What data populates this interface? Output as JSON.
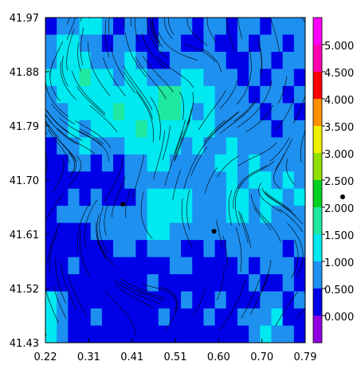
{
  "chart_data": {
    "type": "heatmap",
    "title": "",
    "xlabel": "",
    "ylabel": "",
    "xlim": [
      0.22,
      0.79
    ],
    "ylim": [
      41.43,
      41.97
    ],
    "x_ticks": [
      "0.22",
      "0.31",
      "0.41",
      "0.51",
      "0.60",
      "0.70",
      "0.79"
    ],
    "y_ticks": [
      "41.97",
      "41.88",
      "41.79",
      "41.70",
      "41.61",
      "41.52",
      "41.43"
    ],
    "colorbar": {
      "labels": [
        "0.000",
        "0.500",
        "1.000",
        "1.500",
        "2.000",
        "2.500",
        "3.000",
        "3.500",
        "4.000",
        "4.500",
        "5.000"
      ],
      "colors": [
        "#9000e0",
        "#0000e8",
        "#1e90f0",
        "#00e8f0",
        "#20e8a0",
        "#00d020",
        "#90e000",
        "#f0f000",
        "#ff9000",
        "#ff0000",
        "#ff00b0",
        "#ff00ff"
      ]
    },
    "overlay": "streamlines",
    "stations": [
      {
        "x": 0.39,
        "y": 41.66
      },
      {
        "x": 0.59,
        "y": 41.615
      }
    ],
    "level_grid": [
      [
        1,
        2,
        2,
        3,
        3,
        2,
        1,
        2,
        2,
        1,
        2,
        2,
        2,
        1,
        2,
        2,
        1,
        2,
        2,
        1,
        2,
        2,
        2
      ],
      [
        2,
        3,
        3,
        2,
        2,
        1,
        2,
        2,
        1,
        1,
        2,
        2,
        1,
        1,
        2,
        1,
        1,
        2,
        1,
        2,
        2,
        1,
        2
      ],
      [
        2,
        3,
        3,
        3,
        2,
        2,
        2,
        3,
        2,
        1,
        1,
        2,
        2,
        2,
        2,
        2,
        1,
        1,
        2,
        2,
        1,
        2,
        2
      ],
      [
        3,
        3,
        3,
        4,
        3,
        3,
        2,
        3,
        3,
        2,
        2,
        2,
        3,
        3,
        2,
        2,
        2,
        1,
        2,
        1,
        2,
        2,
        1
      ],
      [
        2,
        3,
        3,
        3,
        3,
        3,
        3,
        3,
        3,
        3,
        4,
        4,
        3,
        3,
        3,
        2,
        2,
        2,
        1,
        2,
        2,
        1,
        2
      ],
      [
        2,
        2,
        3,
        3,
        3,
        3,
        4,
        3,
        3,
        3,
        4,
        4,
        3,
        2,
        3,
        2,
        2,
        2,
        2,
        1,
        2,
        2,
        1
      ],
      [
        2,
        2,
        3,
        2,
        3,
        3,
        3,
        3,
        4,
        3,
        3,
        3,
        3,
        3,
        3,
        2,
        2,
        2,
        2,
        2,
        1,
        2,
        2
      ],
      [
        1,
        2,
        2,
        3,
        2,
        2,
        2,
        3,
        3,
        3,
        3,
        3,
        2,
        3,
        2,
        2,
        3,
        2,
        2,
        2,
        2,
        2,
        2
      ],
      [
        1,
        1,
        2,
        2,
        1,
        2,
        1,
        2,
        2,
        3,
        3,
        2,
        2,
        2,
        2,
        3,
        3,
        2,
        3,
        2,
        2,
        2,
        2
      ],
      [
        1,
        1,
        1,
        1,
        1,
        1,
        1,
        2,
        2,
        2,
        2,
        2,
        2,
        2,
        2,
        2,
        3,
        2,
        3,
        3,
        2,
        3,
        2
      ],
      [
        1,
        1,
        2,
        1,
        2,
        1,
        1,
        1,
        2,
        3,
        3,
        3,
        3,
        2,
        2,
        2,
        3,
        3,
        2,
        3,
        3,
        2,
        3
      ],
      [
        1,
        2,
        2,
        2,
        2,
        2,
        2,
        2,
        2,
        3,
        3,
        3,
        3,
        2,
        2,
        2,
        3,
        3,
        2,
        3,
        2,
        2,
        2
      ],
      [
        1,
        1,
        1,
        1,
        2,
        2,
        2,
        2,
        2,
        3,
        3,
        2,
        2,
        2,
        2,
        2,
        2,
        2,
        2,
        2,
        2,
        2,
        2
      ],
      [
        1,
        1,
        1,
        1,
        1,
        1,
        2,
        2,
        1,
        2,
        2,
        2,
        1,
        1,
        2,
        1,
        2,
        2,
        2,
        2,
        2,
        1,
        2
      ],
      [
        1,
        1,
        2,
        1,
        1,
        1,
        1,
        1,
        1,
        1,
        1,
        2,
        2,
        1,
        1,
        1,
        1,
        2,
        1,
        2,
        2,
        2,
        1
      ],
      [
        1,
        1,
        1,
        1,
        1,
        1,
        1,
        1,
        1,
        2,
        1,
        1,
        1,
        1,
        1,
        1,
        1,
        1,
        2,
        1,
        1,
        2,
        1
      ],
      [
        3,
        2,
        1,
        1,
        1,
        1,
        1,
        1,
        1,
        1,
        1,
        1,
        2,
        1,
        1,
        2,
        1,
        1,
        1,
        2,
        2,
        1,
        2
      ],
      [
        3,
        2,
        1,
        1,
        2,
        1,
        1,
        1,
        1,
        1,
        2,
        1,
        1,
        1,
        2,
        1,
        1,
        2,
        2,
        2,
        3,
        1,
        1
      ],
      [
        3,
        2,
        1,
        1,
        1,
        1,
        1,
        1,
        1,
        1,
        1,
        1,
        1,
        1,
        1,
        1,
        1,
        1,
        2,
        3,
        2,
        2,
        1
      ]
    ]
  }
}
